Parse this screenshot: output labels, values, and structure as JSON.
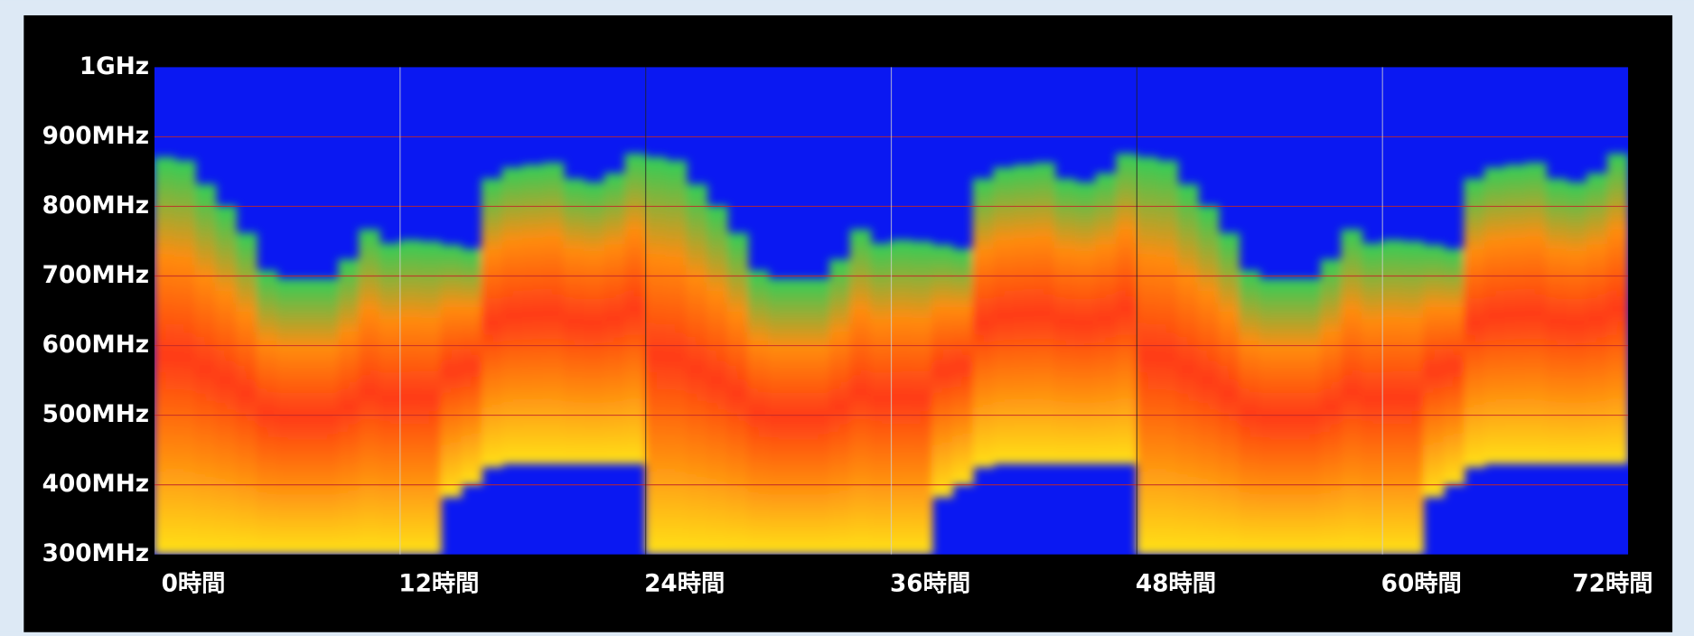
{
  "chart_data": {
    "type": "range_bar",
    "x": [
      0,
      1,
      2,
      3,
      4,
      5,
      6,
      7,
      8,
      9,
      10,
      11,
      12,
      13,
      14,
      15,
      16,
      17,
      18,
      19,
      20,
      21,
      22,
      23,
      24,
      25,
      26,
      27,
      28,
      29,
      30,
      31,
      32,
      33,
      34,
      35,
      36,
      37,
      38,
      39,
      40,
      41,
      42,
      43,
      44,
      45,
      46,
      47,
      48,
      49,
      50,
      51,
      52,
      53,
      54,
      55,
      56,
      57,
      58,
      59,
      60,
      61,
      62,
      63,
      64,
      65,
      66,
      67,
      68,
      69,
      70,
      71
    ],
    "high": [
      871,
      866,
      832,
      801,
      762,
      708,
      696,
      696,
      696,
      724,
      767,
      747,
      752,
      750,
      745,
      739,
      840,
      856,
      860,
      863,
      840,
      835,
      848,
      876,
      871,
      866,
      832,
      801,
      762,
      708,
      696,
      696,
      696,
      724,
      767,
      747,
      752,
      750,
      745,
      739,
      840,
      856,
      860,
      863,
      840,
      835,
      848,
      876,
      871,
      866,
      832,
      801,
      762,
      708,
      696,
      696,
      696,
      724,
      767,
      747,
      752,
      750,
      745,
      739,
      840,
      856,
      860,
      863,
      840,
      835,
      848,
      876
    ],
    "low": [
      300,
      300,
      300,
      300,
      300,
      300,
      300,
      300,
      300,
      300,
      300,
      300,
      300,
      300,
      382,
      400,
      425,
      430,
      430,
      430,
      430,
      430,
      430,
      430,
      300,
      300,
      300,
      300,
      300,
      300,
      300,
      300,
      300,
      300,
      300,
      300,
      300,
      300,
      382,
      400,
      425,
      430,
      430,
      430,
      430,
      430,
      430,
      430,
      300,
      300,
      300,
      300,
      300,
      300,
      300,
      300,
      300,
      300,
      300,
      300,
      300,
      300,
      382,
      400,
      425,
      430,
      430,
      430,
      430,
      430,
      430,
      430
    ],
    "colors": [
      "#2ccf5a",
      "#ff8c10",
      "#ff3a12",
      "#ff8c10",
      "#ffe21a"
    ],
    "background": "#0a18f2",
    "grid": true,
    "grid_color": "#c02828",
    "xlim": [
      0,
      72
    ],
    "xticks": [
      {
        "value": 0,
        "label": "0時間"
      },
      {
        "value": 12,
        "label": "12時間"
      },
      {
        "value": 24,
        "label": "24時間"
      },
      {
        "value": 36,
        "label": "36時間"
      },
      {
        "value": 48,
        "label": "48時間"
      },
      {
        "value": 60,
        "label": "60時間"
      },
      {
        "value": 72,
        "label": "72時間"
      }
    ],
    "ylim": [
      300,
      1000
    ],
    "yticks": [
      {
        "value": 1000,
        "label": "1GHz"
      },
      {
        "value": 900,
        "label": "900MHz"
      },
      {
        "value": 800,
        "label": "800MHz"
      },
      {
        "value": 700,
        "label": "700MHz"
      },
      {
        "value": 600,
        "label": "600MHz"
      },
      {
        "value": 500,
        "label": "500MHz"
      },
      {
        "value": 400,
        "label": "400MHz"
      },
      {
        "value": 300,
        "label": "300MHz"
      }
    ]
  }
}
